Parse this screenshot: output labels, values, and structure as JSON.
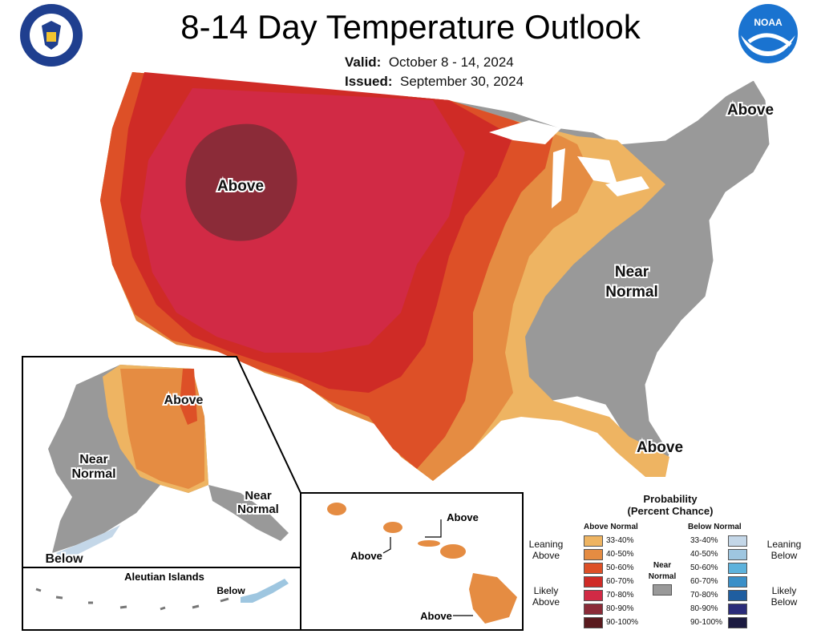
{
  "title": "8-14 Day Temperature Outlook",
  "valid_label": "Valid:",
  "valid_value": "October 8 - 14, 2024",
  "issued_label": "Issued:",
  "issued_value": "September 30, 2024",
  "logos": {
    "left": "department-of-commerce-seal",
    "right": "noaa-logo"
  },
  "map": {
    "labels": {
      "conus_above_west": "Above",
      "conus_above_northeast": "Above",
      "conus_near_normal_1": "Near",
      "conus_near_normal_2": "Normal",
      "conus_above_florida": "Above",
      "ak_above": "Above",
      "ak_near_1": "Near",
      "ak_near_2": "Normal",
      "ak_se_near_1": "Near",
      "ak_se_near_2": "Normal",
      "ak_below": "Below",
      "aleutian_title": "Aleutian Islands",
      "aleutian_below": "Below",
      "hi_above_1": "Above",
      "hi_above_2": "Above",
      "hi_above_3": "Above"
    }
  },
  "legend": {
    "title_1": "Probability",
    "title_2": "(Percent Chance)",
    "above_header": "Above Normal",
    "below_header": "Below Normal",
    "near_1": "Near",
    "near_2": "Normal",
    "near_color": "#999999",
    "leaning_above_1": "Leaning",
    "leaning_above_2": "Above",
    "likely_above_1": "Likely",
    "likely_above_2": "Above",
    "leaning_below_1": "Leaning",
    "leaning_below_2": "Below",
    "likely_below_1": "Likely",
    "likely_below_2": "Below",
    "above": [
      {
        "range": "33-40%",
        "color": "#EEB462"
      },
      {
        "range": "40-50%",
        "color": "#E58C42"
      },
      {
        "range": "50-60%",
        "color": "#DD5027"
      },
      {
        "range": "60-70%",
        "color": "#CF2B26"
      },
      {
        "range": "70-80%",
        "color": "#D12A45"
      },
      {
        "range": "80-90%",
        "color": "#8B2B38"
      },
      {
        "range": "90-100%",
        "color": "#5A1A1E"
      }
    ],
    "below": [
      {
        "range": "33-40%",
        "color": "#C4D7E8"
      },
      {
        "range": "40-50%",
        "color": "#9EC6E0"
      },
      {
        "range": "50-60%",
        "color": "#5DB2DC"
      },
      {
        "range": "60-70%",
        "color": "#3A8FC8"
      },
      {
        "range": "70-80%",
        "color": "#1F5EA0"
      },
      {
        "range": "80-90%",
        "color": "#2B2C7A"
      },
      {
        "range": "90-100%",
        "color": "#1B1A40"
      }
    ]
  }
}
